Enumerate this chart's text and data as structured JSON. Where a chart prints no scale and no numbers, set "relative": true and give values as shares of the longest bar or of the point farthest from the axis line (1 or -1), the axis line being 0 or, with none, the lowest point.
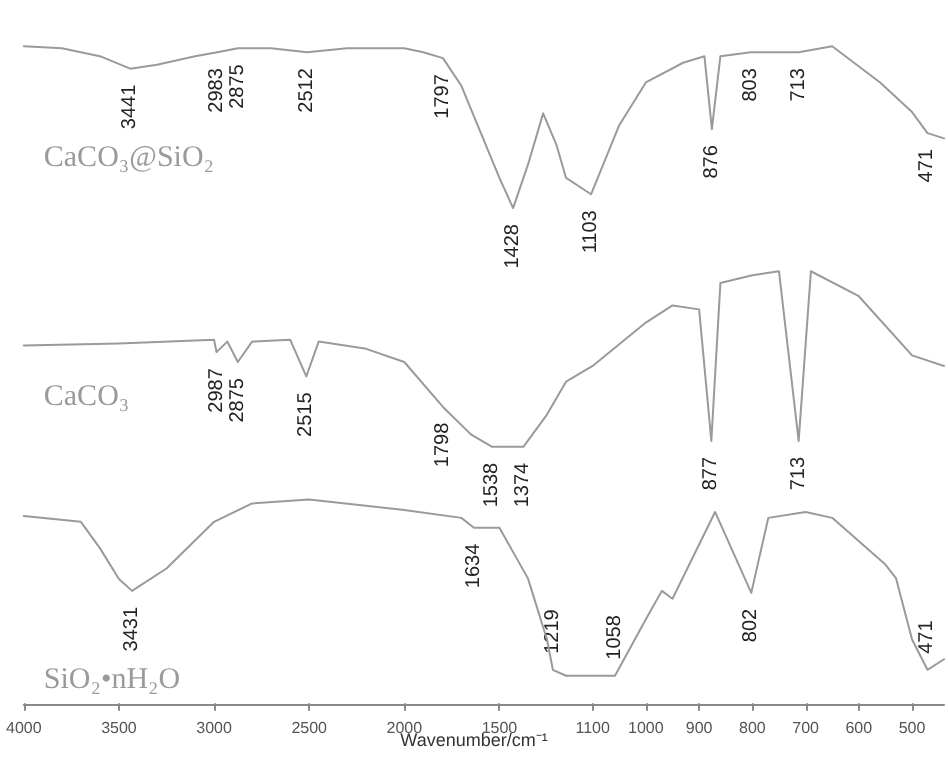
{
  "chart_data": [
    {
      "type": "line",
      "relative": true,
      "tick_labels": "x",
      "xlabel": "Wavenumber/cm⁻¹",
      "xlim": [
        4000,
        1150
      ],
      "xticks": [
        4000,
        3500,
        3000,
        2500,
        2000,
        1500
      ],
      "series": [
        {
          "name": "CaCO₃@SiO₂",
          "color": "#9a9a9a",
          "x": [
            4000,
            3800,
            3600,
            3441,
            3300,
            3100,
            2983,
            2875,
            2700,
            2512,
            2300,
            2000,
            1900,
            1797,
            1700,
            1600,
            1500,
            1428,
            1350,
            1270,
            1200,
            1150
          ],
          "values": [
            1.0,
            0.997,
            0.985,
            0.966,
            0.972,
            0.985,
            0.991,
            0.997,
            0.997,
            0.991,
            0.997,
            0.997,
            0.991,
            0.982,
            0.94,
            0.87,
            0.8,
            0.754,
            0.82,
            0.898,
            0.85,
            0.8
          ]
        },
        {
          "name": "CaCO₃",
          "color": "#9a9a9a",
          "x": [
            4000,
            3500,
            3000,
            2987,
            2930,
            2875,
            2800,
            2600,
            2515,
            2450,
            2200,
            2000,
            1798,
            1650,
            1538,
            1374,
            1250,
            1150
          ],
          "values": [
            0.545,
            0.548,
            0.554,
            0.535,
            0.551,
            0.52,
            0.551,
            0.554,
            0.498,
            0.551,
            0.54,
            0.52,
            0.452,
            0.41,
            0.391,
            0.391,
            0.44,
            0.49
          ]
        },
        {
          "name": "SiO₂•nH₂O",
          "color": "#9a9a9a",
          "x": [
            4000,
            3700,
            3600,
            3500,
            3431,
            3250,
            3000,
            2800,
            2500,
            2000,
            1700,
            1634,
            1500,
            1350,
            1250,
            1219,
            1150
          ],
          "values": [
            0.286,
            0.277,
            0.237,
            0.19,
            0.172,
            0.206,
            0.277,
            0.305,
            0.311,
            0.295,
            0.283,
            0.268,
            0.268,
            0.191,
            0.098,
            0.052,
            0.043
          ]
        }
      ],
      "annotations": [
        {
          "text": "3441",
          "x": 3441,
          "y": 0.966
        },
        {
          "text": "2983",
          "x": 2983,
          "y": 0.991
        },
        {
          "text": "2875",
          "x": 2875,
          "y": 0.997
        },
        {
          "text": "2512",
          "x": 2512,
          "y": 0.991
        },
        {
          "text": "1797",
          "x": 1797,
          "y": 0.982
        },
        {
          "text": "1428",
          "x": 1428,
          "y": 0.754
        },
        {
          "text": "2987",
          "x": 2987,
          "y": 0.535
        },
        {
          "text": "2875",
          "x": 2875,
          "y": 0.52
        },
        {
          "text": "2515",
          "x": 2515,
          "y": 0.498
        },
        {
          "text": "1798",
          "x": 1798,
          "y": 0.452
        },
        {
          "text": "1538",
          "x": 1538,
          "y": 0.391
        },
        {
          "text": "1374",
          "x": 1374,
          "y": 0.391
        },
        {
          "text": "3431",
          "x": 3431,
          "y": 0.172
        },
        {
          "text": "1634",
          "x": 1634,
          "y": 0.268
        },
        {
          "text": "1219",
          "x": 1219,
          "y": 0.052
        }
      ]
    },
    {
      "type": "line",
      "relative": true,
      "tick_labels": "x",
      "xlim": [
        1150,
        440
      ],
      "xticks": [
        1100,
        1000,
        900,
        800,
        700,
        600,
        500
      ],
      "series": [
        {
          "color": "#9a9a9a",
          "x": [
            1150,
            1103,
            1050,
            1000,
            930,
            890,
            876,
            860,
            803,
            713,
            650,
            560,
            500,
            471,
            440
          ],
          "values": [
            0.8,
            0.775,
            0.88,
            0.945,
            0.975,
            0.985,
            0.874,
            0.985,
            0.991,
            0.991,
            1.0,
            0.945,
            0.9,
            0.868,
            0.86
          ]
        },
        {
          "color": "#9a9a9a",
          "x": [
            1150,
            1100,
            1000,
            950,
            900,
            877,
            860,
            800,
            750,
            713,
            690,
            600,
            500,
            440
          ],
          "values": [
            0.49,
            0.514,
            0.58,
            0.606,
            0.6,
            0.4,
            0.64,
            0.652,
            0.658,
            0.4,
            0.658,
            0.62,
            0.53,
            0.514
          ]
        },
        {
          "color": "#9a9a9a",
          "x": [
            1150,
            1058,
            1000,
            970,
            950,
            870,
            802,
            770,
            700,
            650,
            550,
            530,
            500,
            471,
            440
          ],
          "values": [
            0.043,
            0.043,
            0.129,
            0.172,
            0.16,
            0.292,
            0.169,
            0.283,
            0.292,
            0.283,
            0.212,
            0.191,
            0.098,
            0.052,
            0.068
          ]
        }
      ],
      "annotations": [
        {
          "text": "1103",
          "x": 1103,
          "y": 0.775
        },
        {
          "text": "876",
          "x": 876,
          "y": 0.874
        },
        {
          "text": "803",
          "x": 803,
          "y": 0.991
        },
        {
          "text": "713",
          "x": 713,
          "y": 0.991
        },
        {
          "text": "471",
          "x": 471,
          "y": 0.868
        },
        {
          "text": "877",
          "x": 877,
          "y": 0.4
        },
        {
          "text": "713",
          "x": 713,
          "y": 0.4
        },
        {
          "text": "1058",
          "x": 1058,
          "y": 0.043
        },
        {
          "text": "802",
          "x": 802,
          "y": 0.169
        },
        {
          "text": "471",
          "x": 471,
          "y": 0.052
        }
      ]
    }
  ]
}
